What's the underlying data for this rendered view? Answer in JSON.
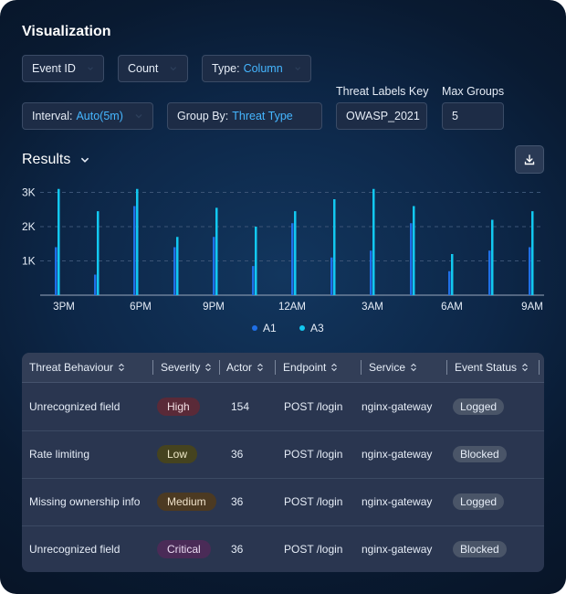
{
  "title": "Visualization",
  "controls": {
    "metric": "Event ID",
    "aggregation": "Count",
    "type_label": "Type:",
    "type_value": "Column",
    "interval_label": "Interval:",
    "interval_value": "Auto(5m)",
    "groupby_label": "Group By:",
    "groupby_value": "Threat Type",
    "threat_labels_key_label": "Threat Labels Key",
    "threat_labels_key_value": "OWASP_2021",
    "max_groups_label": "Max Groups",
    "max_groups_value": "5"
  },
  "results_label": "Results",
  "colors": {
    "a1": "#1f6fe6",
    "a3": "#12c8f0",
    "accent": "#45b6ff"
  },
  "chart_data": {
    "type": "bar",
    "y_ticks": [
      "1K",
      "2K",
      "3K"
    ],
    "x_ticks": [
      "3PM",
      "6PM",
      "9PM",
      "12AM",
      "3AM",
      "6AM",
      "9AM"
    ],
    "ylim": [
      0,
      3000
    ],
    "series": [
      {
        "name": "A1",
        "values": [
          1400,
          600,
          2600,
          1400,
          1700,
          850,
          2100,
          1100,
          1300,
          2100,
          700,
          1300,
          1400
        ]
      },
      {
        "name": "A3",
        "values": [
          3100,
          2450,
          3100,
          1700,
          2550,
          2000,
          2450,
          2800,
          3100,
          2600,
          1200,
          2200,
          2450
        ]
      }
    ]
  },
  "table": {
    "headers": [
      "Threat Behaviour",
      "Severity",
      "Actor",
      "Endpoint",
      "Service",
      "Event Status"
    ],
    "rows": [
      {
        "behaviour": "Unrecognized field",
        "severity": "High",
        "sev_class": "high",
        "actor": "154",
        "endpoint": "POST /login",
        "service": "nginx-gateway",
        "status": "Logged"
      },
      {
        "behaviour": "Rate limiting",
        "severity": "Low",
        "sev_class": "low",
        "actor": "36",
        "endpoint": "POST /login",
        "service": "nginx-gateway",
        "status": "Blocked"
      },
      {
        "behaviour": "Missing ownership info",
        "severity": "Medium",
        "sev_class": "medium",
        "actor": "36",
        "endpoint": "POST /login",
        "service": "nginx-gateway",
        "status": "Logged"
      },
      {
        "behaviour": "Unrecognized field",
        "severity": "Critical",
        "sev_class": "critical",
        "actor": "36",
        "endpoint": "POST /login",
        "service": "nginx-gateway",
        "status": "Blocked"
      }
    ]
  }
}
